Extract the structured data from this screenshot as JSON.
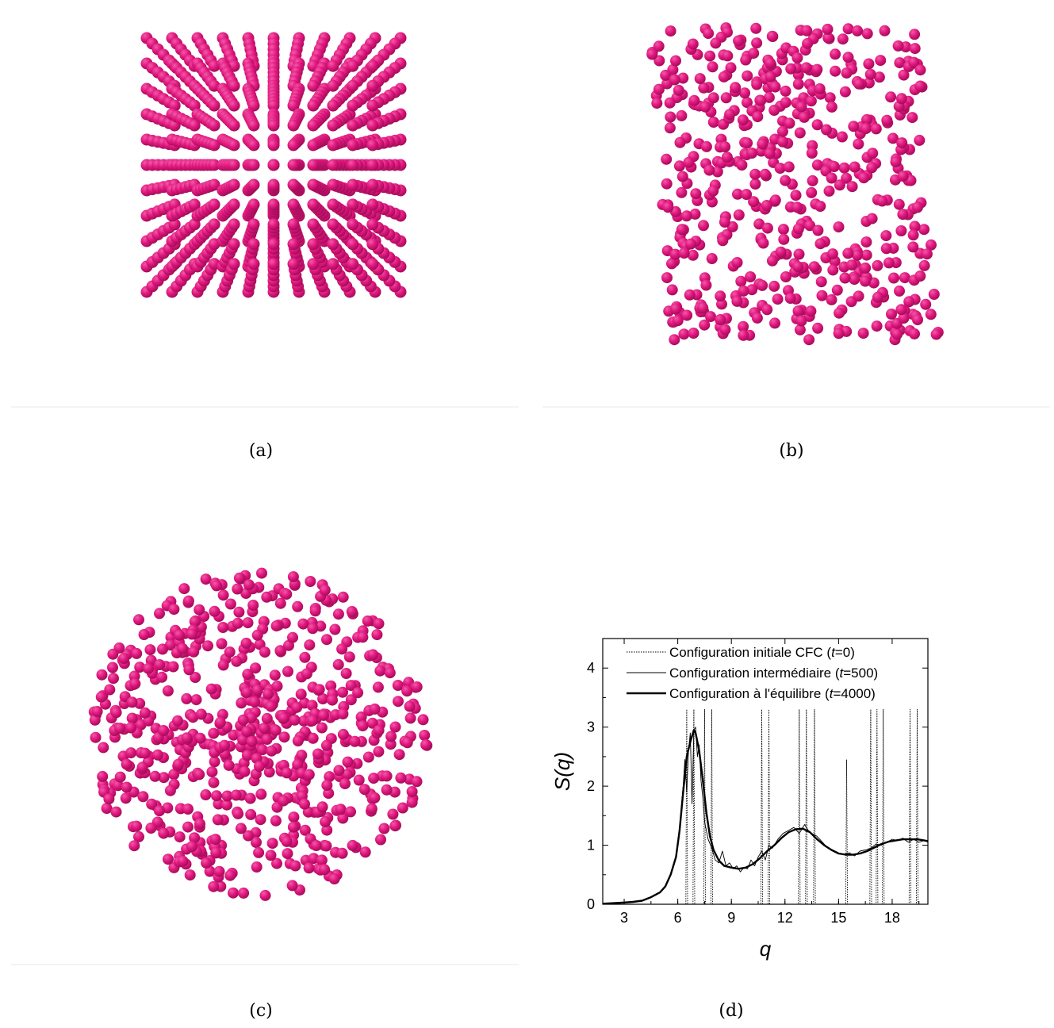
{
  "panels": {
    "a": {
      "label": "(a)"
    },
    "b": {
      "label": "(b)"
    },
    "c": {
      "label": "(c)"
    },
    "d": {
      "label": "(d)"
    }
  },
  "colors": {
    "atom": "#e0167e",
    "atom_highlight": "#f35aa8",
    "atom_shadow": "#a50d5a",
    "line": "#000000",
    "baseline": "#f1f6ef"
  },
  "chart_data": {
    "type": "line",
    "xlabel": "q",
    "ylabel": "S(q)",
    "xlim": [
      1.8,
      20.0
    ],
    "ylim": [
      0,
      4.5
    ],
    "xticks": [
      3,
      6,
      9,
      12,
      15,
      18
    ],
    "yticks": [
      0,
      1,
      2,
      3,
      4
    ],
    "grid": false,
    "legend_position": "top",
    "legend": [
      {
        "style": "dotted",
        "text_prefix": "Configuration initiale CFC (",
        "t_label": "t",
        "text_suffix": "=0)"
      },
      {
        "style": "thin",
        "text_prefix": "Configuration intermédiaire (",
        "t_label": "t",
        "text_suffix": "=500)"
      },
      {
        "style": "thick",
        "text_prefix": "Configuration à l'équilibre (",
        "t_label": "t",
        "text_suffix": "=4000)"
      }
    ],
    "series": [
      {
        "name": "Configuration initiale CFC (t=0)",
        "style": "dotted",
        "x": [
          1.8,
          6.3,
          6.45,
          6.5,
          6.55,
          6.7,
          6.85,
          6.9,
          6.95,
          7.1,
          7.3,
          7.45,
          7.5,
          7.55,
          7.7,
          7.85,
          7.9,
          7.95,
          8.2,
          10.5,
          10.65,
          10.7,
          10.75,
          10.9,
          11.05,
          11.1,
          11.15,
          12.6,
          12.75,
          12.8,
          12.85,
          13.0,
          13.15,
          13.2,
          13.25,
          13.45,
          13.6,
          13.65,
          13.7,
          15.2,
          15.4,
          15.45,
          15.5,
          15.6,
          16.6,
          16.75,
          16.8,
          16.85,
          16.95,
          17.1,
          17.15,
          17.2,
          17.3,
          17.45,
          17.5,
          17.55,
          18.8,
          18.95,
          19.0,
          19.05,
          19.2,
          19.35,
          19.4,
          19.45,
          20.0
        ],
        "y": [
          0,
          0,
          0,
          3.3,
          0,
          0,
          0,
          3.3,
          0,
          0,
          0,
          0,
          3.3,
          0,
          0,
          0,
          3.3,
          0,
          0,
          0,
          0,
          3.3,
          0,
          0,
          0,
          3.3,
          0,
          0,
          0,
          3.3,
          0,
          0,
          0,
          3.3,
          0,
          0,
          0,
          3.3,
          0,
          0,
          0,
          2.45,
          0,
          0,
          0,
          0,
          3.3,
          0,
          0,
          0,
          3.3,
          0,
          0,
          0,
          3.3,
          0,
          0,
          0,
          3.3,
          0,
          0,
          0,
          3.3,
          0,
          0
        ]
      },
      {
        "name": "Configuration intermédiaire (t=500)",
        "style": "thin",
        "x": [
          1.8,
          2.5,
          3.0,
          3.5,
          4.0,
          4.5,
          5.0,
          5.3,
          5.6,
          5.9,
          6.1,
          6.3,
          6.4,
          6.5,
          6.6,
          6.7,
          6.8,
          6.9,
          7.0,
          7.1,
          7.2,
          7.3,
          7.4,
          7.5,
          7.7,
          7.9,
          8.1,
          8.3,
          8.5,
          8.7,
          8.9,
          9.1,
          9.3,
          9.5,
          9.7,
          9.9,
          10.1,
          10.3,
          10.5,
          10.7,
          10.9,
          11.1,
          11.3,
          11.6,
          11.9,
          12.2,
          12.5,
          12.8,
          13.1,
          13.3,
          13.5,
          13.8,
          14.1,
          14.4,
          14.7,
          15.0,
          15.3,
          15.6,
          15.9,
          16.2,
          16.5,
          16.8,
          17.1,
          17.4,
          17.7,
          18.0,
          18.3,
          18.6,
          18.9,
          19.2,
          19.5,
          19.8,
          20.0
        ],
        "y": [
          0.01,
          0.02,
          0.03,
          0.04,
          0.06,
          0.12,
          0.2,
          0.3,
          0.5,
          0.8,
          1.3,
          2.0,
          2.45,
          1.9,
          2.6,
          2.9,
          1.7,
          2.95,
          3.0,
          2.5,
          2.7,
          2.1,
          1.8,
          1.4,
          1.1,
          0.95,
          0.75,
          0.7,
          0.9,
          0.65,
          0.7,
          0.6,
          0.65,
          0.55,
          0.62,
          0.6,
          0.75,
          0.65,
          0.8,
          0.9,
          0.75,
          1.0,
          0.95,
          1.1,
          1.2,
          1.25,
          1.3,
          1.2,
          1.35,
          1.25,
          1.2,
          1.15,
          1.05,
          0.95,
          0.9,
          0.85,
          0.85,
          0.87,
          0.82,
          0.9,
          0.92,
          0.95,
          1.02,
          1.0,
          1.05,
          1.1,
          1.08,
          1.12,
          1.05,
          1.1,
          1.05,
          1.08,
          1.05
        ]
      },
      {
        "name": "Configuration à l'équilibre (t=4000)",
        "style": "thick",
        "x": [
          1.8,
          2.5,
          3.0,
          3.5,
          4.0,
          4.5,
          5.0,
          5.3,
          5.6,
          5.9,
          6.1,
          6.3,
          6.5,
          6.7,
          6.9,
          7.0,
          7.2,
          7.4,
          7.6,
          7.8,
          8.0,
          8.3,
          8.6,
          9.0,
          9.4,
          9.8,
          10.2,
          10.6,
          11.0,
          11.4,
          11.8,
          12.2,
          12.6,
          13.0,
          13.4,
          13.8,
          14.2,
          14.6,
          15.0,
          15.4,
          15.8,
          16.2,
          16.6,
          17.0,
          17.4,
          17.8,
          18.2,
          18.6,
          19.0,
          19.4,
          19.8,
          20.0
        ],
        "y": [
          0.01,
          0.02,
          0.03,
          0.04,
          0.06,
          0.12,
          0.2,
          0.3,
          0.5,
          0.8,
          1.25,
          1.9,
          2.5,
          2.75,
          2.95,
          2.9,
          2.6,
          2.1,
          1.55,
          1.15,
          0.92,
          0.74,
          0.65,
          0.62,
          0.6,
          0.62,
          0.68,
          0.78,
          0.9,
          1.0,
          1.12,
          1.22,
          1.27,
          1.28,
          1.22,
          1.1,
          1.0,
          0.92,
          0.86,
          0.84,
          0.84,
          0.86,
          0.9,
          0.96,
          1.02,
          1.06,
          1.08,
          1.1,
          1.1,
          1.1,
          1.08,
          1.07
        ]
      }
    ]
  }
}
